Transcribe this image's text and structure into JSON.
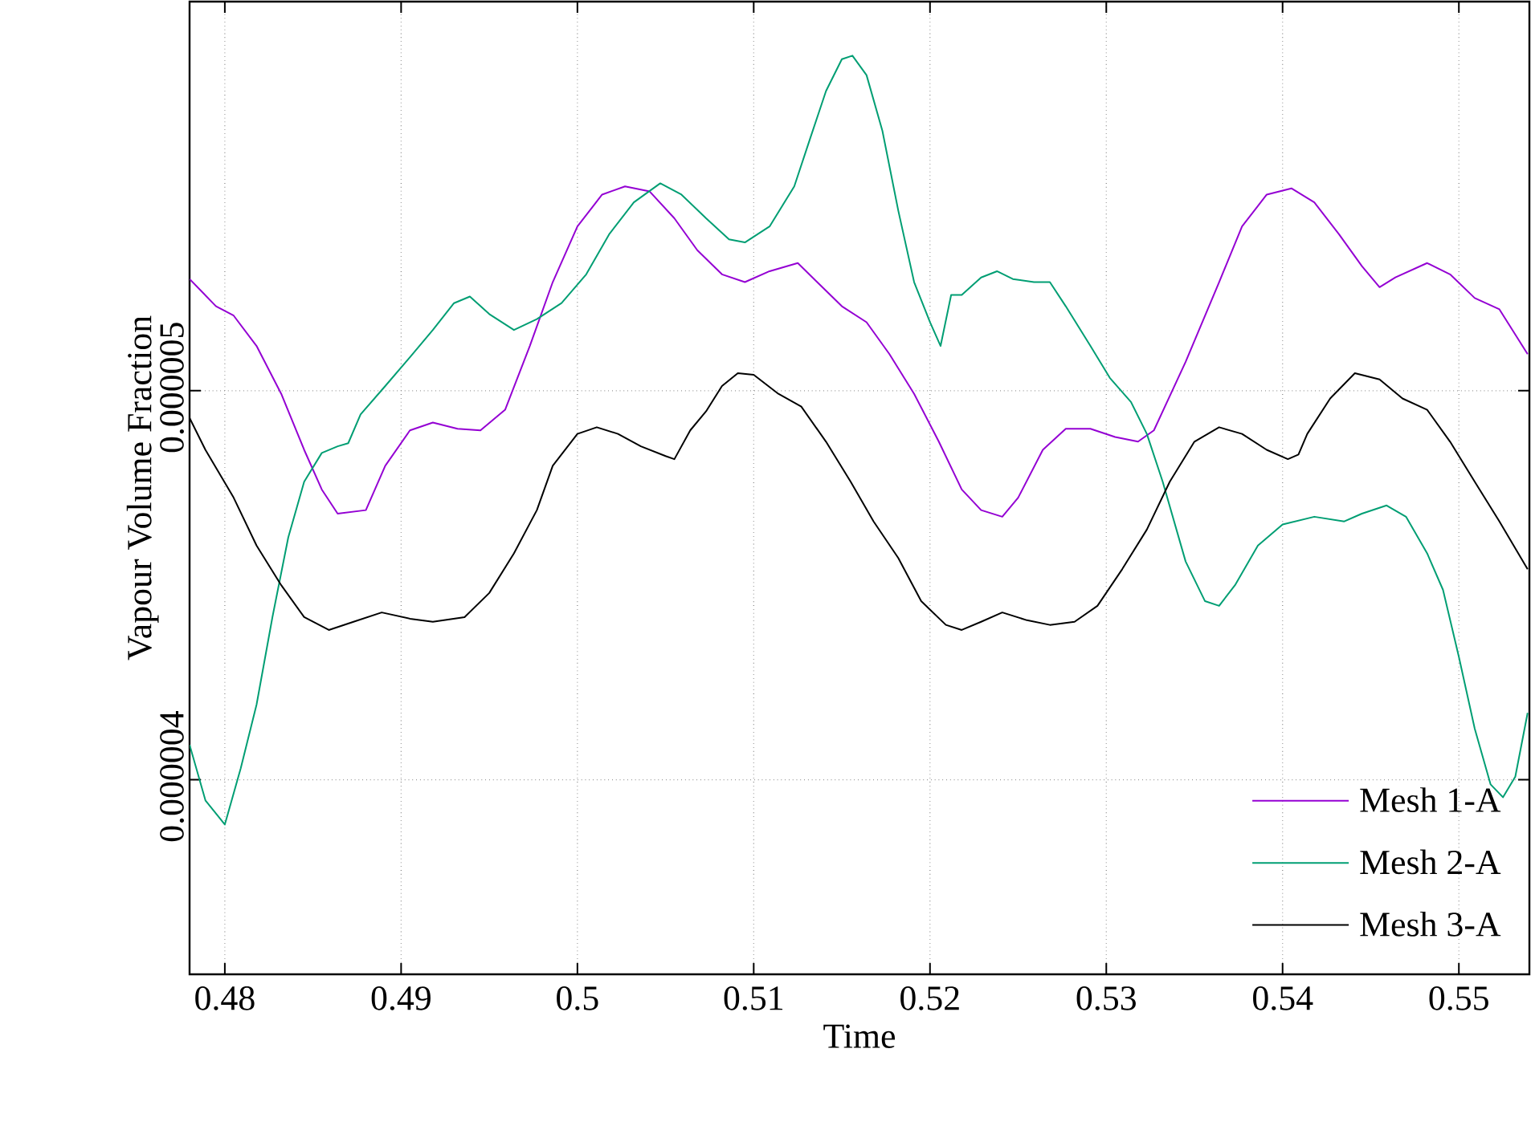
{
  "chart_data": {
    "type": "line",
    "xlabel": "Time",
    "ylabel": "Vapour Volume Fraction",
    "xlim": [
      0.478,
      0.554
    ],
    "ylim": [
      3.5e-06,
      6e-06
    ],
    "xticks": [
      0.48,
      0.49,
      0.5,
      0.51,
      0.52,
      0.53,
      0.54,
      0.55
    ],
    "yticks": [
      {
        "value": 4e-06,
        "label": "0.000004"
      },
      {
        "value": 5e-06,
        "label": "0.000005"
      }
    ],
    "grid": true,
    "legend": "bottom right",
    "series": [
      {
        "name": "Mesh 1-A",
        "color": "#9400d3",
        "x": [
          0.478,
          0.4795,
          0.4805,
          0.4818,
          0.4832,
          0.4845,
          0.4855,
          0.4864,
          0.488,
          0.4891,
          0.4905,
          0.4918,
          0.4932,
          0.4945,
          0.4959,
          0.4973,
          0.4986,
          0.5,
          0.5014,
          0.5027,
          0.5041,
          0.5055,
          0.5068,
          0.5082,
          0.5095,
          0.5109,
          0.5125,
          0.5136,
          0.515,
          0.5164,
          0.5177,
          0.5191,
          0.5205,
          0.5218,
          0.5229,
          0.5241,
          0.525,
          0.5264,
          0.5277,
          0.5291,
          0.5305,
          0.5318,
          0.5327,
          0.5345,
          0.5364,
          0.5377,
          0.5391,
          0.5405,
          0.5418,
          0.5432,
          0.5445,
          0.5455,
          0.5464,
          0.5482,
          0.5495,
          0.5509,
          0.5523,
          0.5539
        ],
        "values": [
          5.287e-06,
          5.217e-06,
          5.193e-06,
          5.115e-06,
          4.992e-06,
          4.848e-06,
          4.746e-06,
          4.684e-06,
          4.693e-06,
          4.807e-06,
          4.898e-06,
          4.918e-06,
          4.902e-06,
          4.898e-06,
          4.951e-06,
          5.115e-06,
          5.279e-06,
          5.422e-06,
          5.504e-06,
          5.525e-06,
          5.512e-06,
          5.443e-06,
          5.361e-06,
          5.299e-06,
          5.279e-06,
          5.307e-06,
          5.328e-06,
          5.279e-06,
          5.217e-06,
          5.176e-06,
          5.094e-06,
          4.992e-06,
          4.869e-06,
          4.746e-06,
          4.693e-06,
          4.676e-06,
          4.725e-06,
          4.848e-06,
          4.902e-06,
          4.902e-06,
          4.881e-06,
          4.869e-06,
          4.898e-06,
          5.074e-06,
          5.279e-06,
          5.422e-06,
          5.504e-06,
          5.52e-06,
          5.484e-06,
          5.402e-06,
          5.32e-06,
          5.266e-06,
          5.291e-06,
          5.328e-06,
          5.299e-06,
          5.238e-06,
          5.209e-06,
          5.094e-06
        ]
      },
      {
        "name": "Mesh 2-A",
        "color": "#009e73",
        "x": [
          0.478,
          0.4789,
          0.48,
          0.4809,
          0.4818,
          0.4827,
          0.4836,
          0.4845,
          0.4855,
          0.4864,
          0.487,
          0.4877,
          0.4891,
          0.4905,
          0.4918,
          0.493,
          0.4939,
          0.495,
          0.4964,
          0.4977,
          0.4991,
          0.5005,
          0.5018,
          0.5032,
          0.5047,
          0.5059,
          0.5073,
          0.5086,
          0.5095,
          0.5109,
          0.5123,
          0.5132,
          0.5141,
          0.515,
          0.5156,
          0.5164,
          0.5173,
          0.5182,
          0.5191,
          0.52,
          0.5206,
          0.5212,
          0.5218,
          0.5229,
          0.5238,
          0.5247,
          0.5259,
          0.5268,
          0.5277,
          0.5291,
          0.5302,
          0.5314,
          0.5323,
          0.5332,
          0.5345,
          0.5356,
          0.5364,
          0.5373,
          0.5386,
          0.54,
          0.5418,
          0.5435,
          0.5445,
          0.5459,
          0.547,
          0.5482,
          0.5491,
          0.55,
          0.5509,
          0.5518,
          0.5525,
          0.5532,
          0.5539
        ],
        "values": [
          4.09e-06,
          3.947e-06,
          3.885e-06,
          4.029e-06,
          4.193e-06,
          4.418e-06,
          4.623e-06,
          4.766e-06,
          4.84e-06,
          4.857e-06,
          4.865e-06,
          4.939e-06,
          5.012e-06,
          5.086e-06,
          5.156e-06,
          5.225e-06,
          5.242e-06,
          5.197e-06,
          5.156e-06,
          5.184e-06,
          5.225e-06,
          5.299e-06,
          5.402e-06,
          5.484e-06,
          5.533e-06,
          5.504e-06,
          5.443e-06,
          5.389e-06,
          5.381e-06,
          5.422e-06,
          5.525e-06,
          5.648e-06,
          5.77e-06,
          5.852e-06,
          5.861e-06,
          5.811e-06,
          5.668e-06,
          5.463e-06,
          5.279e-06,
          5.176e-06,
          5.115e-06,
          5.246e-06,
          5.246e-06,
          5.291e-06,
          5.307e-06,
          5.287e-06,
          5.279e-06,
          5.279e-06,
          5.217e-06,
          5.115e-06,
          5.033e-06,
          4.971e-06,
          4.889e-06,
          4.766e-06,
          4.561e-06,
          4.459e-06,
          4.447e-06,
          4.5e-06,
          4.602e-06,
          4.656e-06,
          4.676e-06,
          4.664e-06,
          4.684e-06,
          4.705e-06,
          4.676e-06,
          4.582e-06,
          4.488e-06,
          4.316e-06,
          4.131e-06,
          3.988e-06,
          3.955e-06,
          4.008e-06,
          4.172e-06
        ]
      },
      {
        "name": "Mesh 3-A",
        "color": "#000000",
        "x": [
          0.478,
          0.4789,
          0.4805,
          0.4818,
          0.4832,
          0.4845,
          0.4859,
          0.4873,
          0.4889,
          0.4905,
          0.4918,
          0.4936,
          0.495,
          0.4964,
          0.4977,
          0.4986,
          0.5,
          0.5011,
          0.5023,
          0.5036,
          0.505,
          0.5055,
          0.5064,
          0.5073,
          0.5082,
          0.5091,
          0.51,
          0.5114,
          0.5127,
          0.5141,
          0.5155,
          0.5168,
          0.5182,
          0.5195,
          0.5209,
          0.5218,
          0.5229,
          0.5241,
          0.5255,
          0.5268,
          0.5282,
          0.5295,
          0.5309,
          0.5323,
          0.5336,
          0.535,
          0.5364,
          0.5377,
          0.5391,
          0.5403,
          0.5409,
          0.5414,
          0.5427,
          0.5441,
          0.5455,
          0.5468,
          0.5482,
          0.5495,
          0.5509,
          0.5523,
          0.5539
        ],
        "values": [
          4.93e-06,
          4.848e-06,
          4.725e-06,
          4.602e-06,
          4.5e-06,
          4.418e-06,
          4.385e-06,
          4.406e-06,
          4.43e-06,
          4.414e-06,
          4.406e-06,
          4.418e-06,
          4.48e-06,
          4.582e-06,
          4.693e-06,
          4.807e-06,
          4.889e-06,
          4.906e-06,
          4.889e-06,
          4.857e-06,
          4.832e-06,
          4.824e-06,
          4.898e-06,
          4.947e-06,
          5.012e-06,
          5.045e-06,
          5.041e-06,
          4.992e-06,
          4.959e-06,
          4.869e-06,
          4.766e-06,
          4.664e-06,
          4.57e-06,
          4.459e-06,
          4.398e-06,
          4.385e-06,
          4.406e-06,
          4.43e-06,
          4.41e-06,
          4.398e-06,
          4.406e-06,
          4.447e-06,
          4.541e-06,
          4.643e-06,
          4.766e-06,
          4.869e-06,
          4.906e-06,
          4.889e-06,
          4.848e-06,
          4.824e-06,
          4.836e-06,
          4.889e-06,
          4.98e-06,
          5.045e-06,
          5.029e-06,
          4.98e-06,
          4.951e-06,
          4.869e-06,
          4.766e-06,
          4.664e-06,
          4.541e-06
        ]
      }
    ]
  }
}
